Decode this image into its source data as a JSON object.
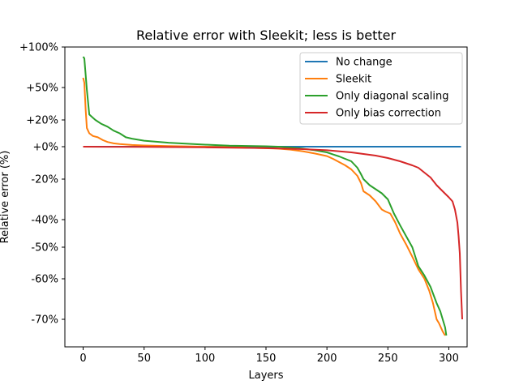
{
  "chart_data": {
    "type": "line",
    "title": "Relative error with Sleekit; less is better",
    "xlabel": "Layers",
    "ylabel": "Relative error (%)",
    "xlim": [
      -15,
      315
    ],
    "x_ticks": [
      0,
      50,
      100,
      150,
      200,
      250,
      300
    ],
    "y_scale": "symmetric-log",
    "y_ticks": [
      {
        "value": 100,
        "label": "+100%"
      },
      {
        "value": 50,
        "label": "+50%"
      },
      {
        "value": 20,
        "label": "+20%"
      },
      {
        "value": 0,
        "label": "+0%"
      },
      {
        "value": -20,
        "label": "-20%"
      },
      {
        "value": -40,
        "label": "-40%"
      },
      {
        "value": -50,
        "label": "-50%"
      },
      {
        "value": -60,
        "label": "-60%"
      },
      {
        "value": -70,
        "label": "-70%"
      }
    ],
    "legend_position": "top-right",
    "grid": false,
    "series": [
      {
        "name": "No change",
        "color": "#1f77b4",
        "points": [
          [
            0,
            0
          ],
          [
            310,
            0
          ]
        ]
      },
      {
        "name": "Sleekit",
        "color": "#ff7f0e",
        "points": [
          [
            0,
            62
          ],
          [
            1,
            56
          ],
          [
            2,
            30
          ],
          [
            3,
            14
          ],
          [
            5,
            10
          ],
          [
            8,
            8
          ],
          [
            12,
            7
          ],
          [
            16,
            5
          ],
          [
            20,
            3.5
          ],
          [
            25,
            2.5
          ],
          [
            30,
            2
          ],
          [
            40,
            1.3
          ],
          [
            50,
            0.9
          ],
          [
            70,
            0.4
          ],
          [
            100,
            0
          ],
          [
            130,
            -0.5
          ],
          [
            160,
            -1.2
          ],
          [
            170,
            -1.8
          ],
          [
            180,
            -2.8
          ],
          [
            190,
            -4.2
          ],
          [
            200,
            -5.8
          ],
          [
            205,
            -7.5
          ],
          [
            210,
            -9.5
          ],
          [
            215,
            -11.5
          ],
          [
            220,
            -14
          ],
          [
            225,
            -18
          ],
          [
            228,
            -22
          ],
          [
            230,
            -26
          ],
          [
            235,
            -28
          ],
          [
            240,
            -31
          ],
          [
            245,
            -35
          ],
          [
            248,
            -36
          ],
          [
            252,
            -37
          ],
          [
            256,
            -41
          ],
          [
            260,
            -45
          ],
          [
            265,
            -49
          ],
          [
            270,
            -53
          ],
          [
            275,
            -57
          ],
          [
            280,
            -60
          ],
          [
            284,
            -63
          ],
          [
            287,
            -66
          ],
          [
            290,
            -70
          ],
          [
            292,
            -71
          ],
          [
            295,
            -73
          ],
          [
            297,
            -74
          ]
        ]
      },
      {
        "name": "Only diagonal scaling",
        "color": "#2ca02c",
        "points": [
          [
            0,
            88
          ],
          [
            1,
            86
          ],
          [
            2,
            66
          ],
          [
            3,
            48
          ],
          [
            5,
            25
          ],
          [
            7,
            23
          ],
          [
            10,
            20
          ],
          [
            15,
            17
          ],
          [
            20,
            15
          ],
          [
            25,
            12
          ],
          [
            30,
            10
          ],
          [
            35,
            7
          ],
          [
            40,
            6
          ],
          [
            50,
            4.5
          ],
          [
            70,
            3
          ],
          [
            100,
            1.5
          ],
          [
            120,
            0.8
          ],
          [
            150,
            0.3
          ],
          [
            160,
            0
          ],
          [
            170,
            -0.5
          ],
          [
            180,
            -1.2
          ],
          [
            190,
            -2.2
          ],
          [
            200,
            -3.5
          ],
          [
            205,
            -4.8
          ],
          [
            210,
            -6
          ],
          [
            215,
            -7.5
          ],
          [
            220,
            -9
          ],
          [
            225,
            -13
          ],
          [
            228,
            -17
          ],
          [
            230,
            -20
          ],
          [
            235,
            -23
          ],
          [
            240,
            -25
          ],
          [
            245,
            -27
          ],
          [
            250,
            -30
          ],
          [
            255,
            -37
          ],
          [
            260,
            -42
          ],
          [
            265,
            -46
          ],
          [
            270,
            -50
          ],
          [
            275,
            -56
          ],
          [
            280,
            -59
          ],
          [
            285,
            -62
          ],
          [
            290,
            -66
          ],
          [
            293,
            -68
          ],
          [
            296,
            -71
          ],
          [
            297,
            -72
          ],
          [
            298,
            -74
          ]
        ]
      },
      {
        "name": "Only bias correction",
        "color": "#d62728",
        "points": [
          [
            0,
            0
          ],
          [
            50,
            -0.1
          ],
          [
            100,
            -0.4
          ],
          [
            150,
            -0.9
          ],
          [
            180,
            -1.5
          ],
          [
            200,
            -2.2
          ],
          [
            220,
            -3.5
          ],
          [
            240,
            -5.5
          ],
          [
            250,
            -7
          ],
          [
            260,
            -9
          ],
          [
            270,
            -11.5
          ],
          [
            275,
            -13
          ],
          [
            280,
            -16
          ],
          [
            285,
            -19
          ],
          [
            290,
            -23
          ],
          [
            295,
            -26
          ],
          [
            300,
            -29
          ],
          [
            303,
            -31
          ],
          [
            305,
            -35
          ],
          [
            307,
            -41
          ],
          [
            308,
            -46
          ],
          [
            309,
            -52
          ],
          [
            310,
            -63
          ],
          [
            311,
            -70
          ]
        ]
      }
    ]
  }
}
